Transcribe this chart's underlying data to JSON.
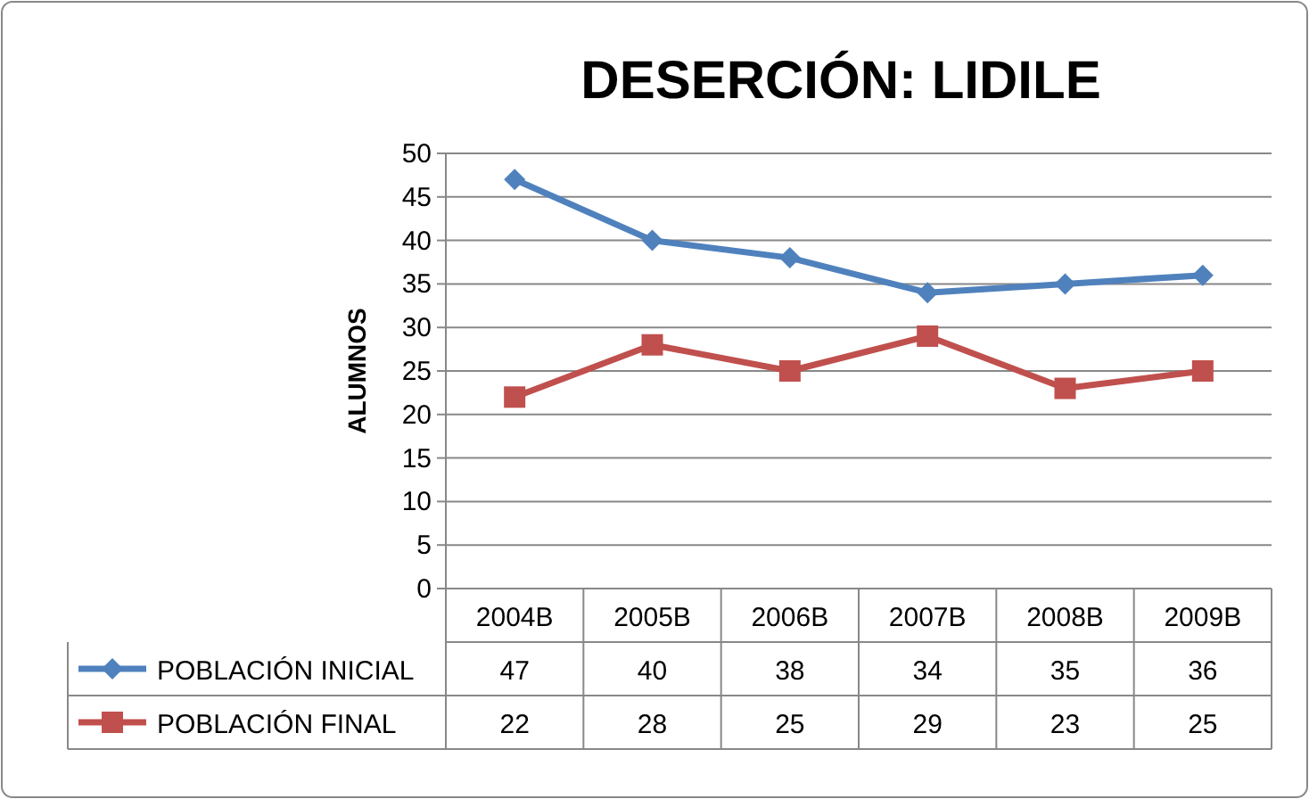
{
  "chart_data": {
    "type": "line",
    "title": "DESERCIÓN: LIDILE",
    "ylabel": "ALUMNOS",
    "categories": [
      "2004B",
      "2005B",
      "2006B",
      "2007B",
      "2008B",
      "2009B"
    ],
    "series": [
      {
        "name": "POBLACIÓN INICIAL",
        "color": "#4f81bd",
        "marker": "diamond",
        "values": [
          47,
          40,
          38,
          34,
          35,
          36
        ]
      },
      {
        "name": "POBLACIÓN FINAL",
        "color": "#c0504d",
        "marker": "square",
        "values": [
          22,
          28,
          25,
          29,
          23,
          25
        ]
      }
    ],
    "ylim": [
      0,
      50
    ],
    "yticks": [
      0,
      5,
      10,
      15,
      20,
      25,
      30,
      35,
      40,
      45,
      50
    ],
    "grid": "y",
    "legend": "bottom",
    "data_labels": true,
    "line_style": "solid"
  }
}
